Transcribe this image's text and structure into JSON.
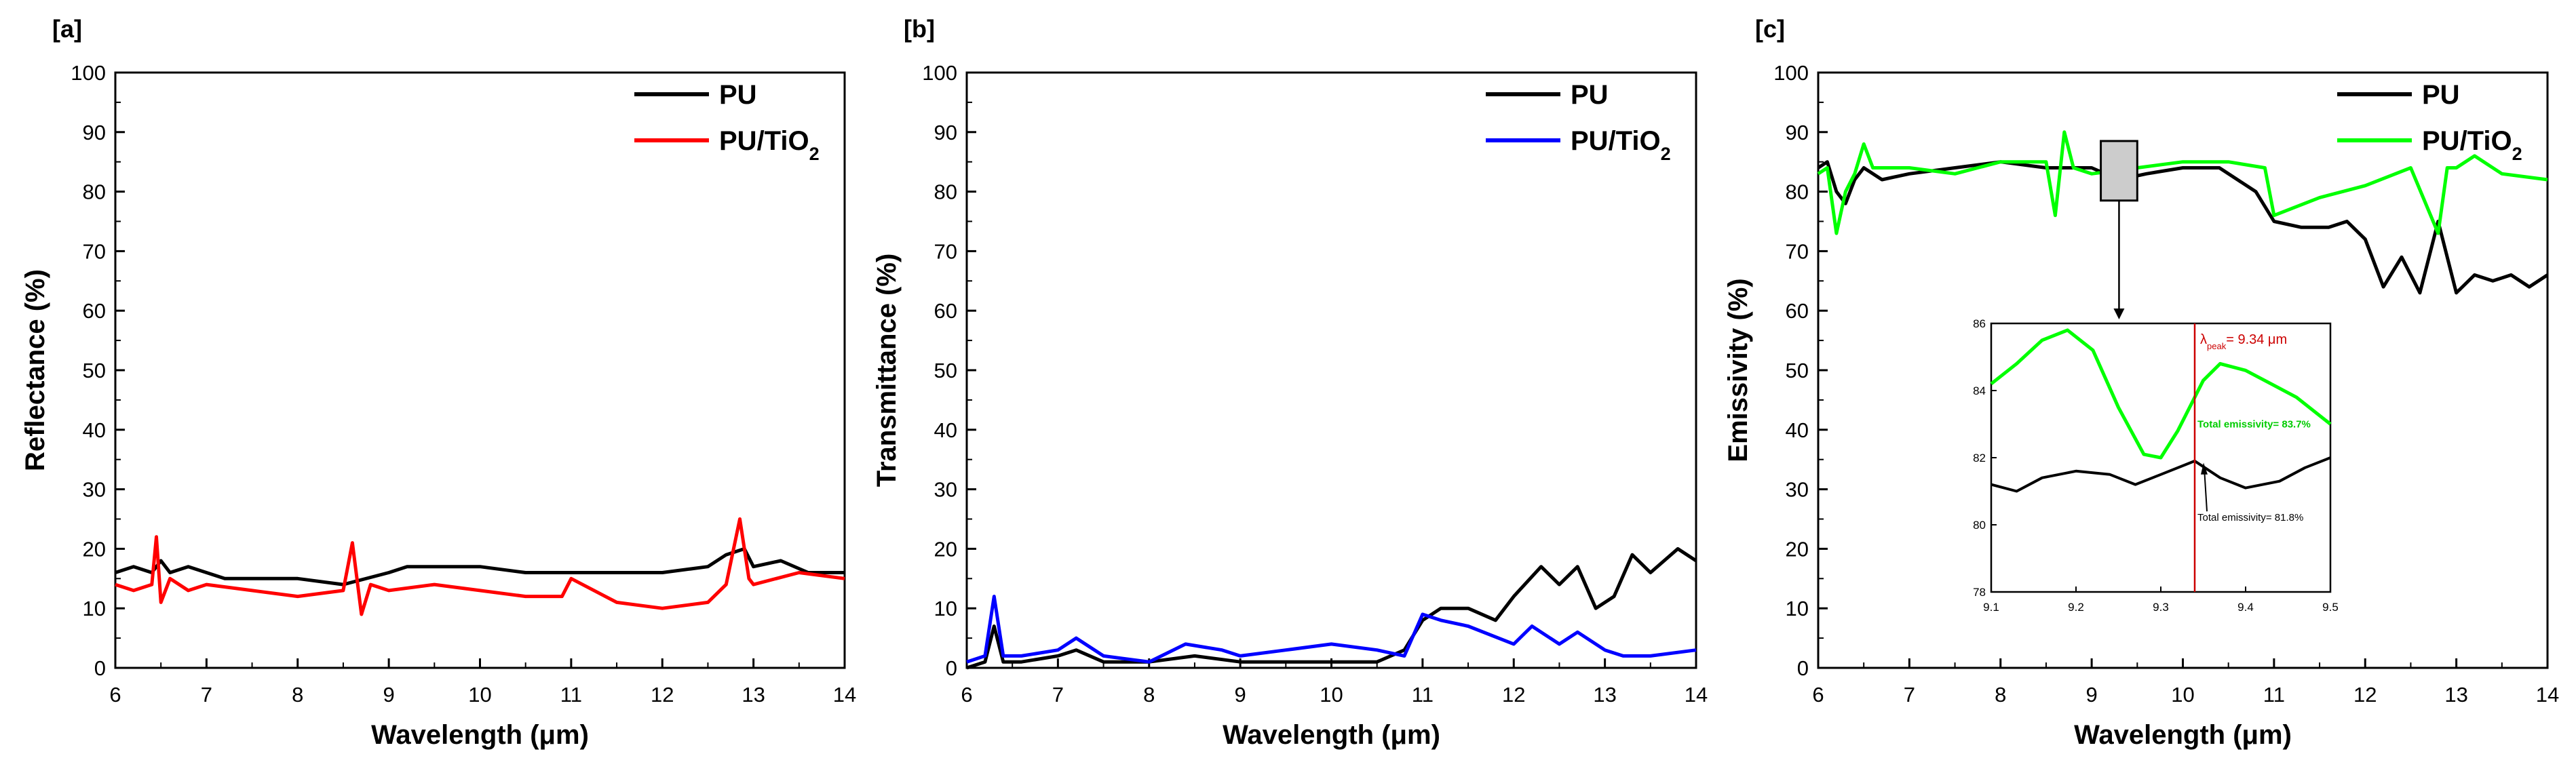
{
  "colors": {
    "pu": "#000000",
    "tio2_a": "#ff0000",
    "tio2_b": "#0000ff",
    "tio2_c": "#00ff00",
    "peak_line": "#cc0000",
    "inset_bg": "#cccccc"
  },
  "chart_data": [
    {
      "type": "line",
      "panel_label": "[a]",
      "xlabel": "Wavelength (μm)",
      "ylabel": "Reflectance (%)",
      "xlim": [
        6,
        14
      ],
      "ylim": [
        0,
        100
      ],
      "x_ticks": [
        "6",
        "7",
        "8",
        "9",
        "10",
        "11",
        "12",
        "13",
        "14"
      ],
      "y_ticks": [
        "0",
        "10",
        "20",
        "30",
        "40",
        "50",
        "60",
        "70",
        "80",
        "90",
        "100"
      ],
      "legend": {
        "placement": "top-right",
        "entries": [
          {
            "name": "PU"
          },
          {
            "name": "PU/TiO",
            "subscript": "2"
          }
        ]
      },
      "series": [
        {
          "name": "PU",
          "color": "#000000",
          "x": [
            6,
            6.2,
            6.4,
            6.5,
            6.6,
            6.8,
            7,
            7.2,
            7.5,
            8,
            8.5,
            9,
            9.2,
            9.5,
            10,
            10.5,
            11,
            11.5,
            12,
            12.5,
            12.7,
            12.9,
            13,
            13.3,
            13.6,
            14
          ],
          "y": [
            16,
            17,
            16,
            18,
            16,
            17,
            16,
            15,
            15,
            15,
            14,
            16,
            17,
            17,
            17,
            16,
            16,
            16,
            16,
            17,
            19,
            20,
            17,
            18,
            16,
            16
          ]
        },
        {
          "name": "PU/TiO2",
          "color": "#ff0000",
          "x": [
            6,
            6.2,
            6.4,
            6.45,
            6.5,
            6.6,
            6.8,
            7,
            7.5,
            8,
            8.5,
            8.6,
            8.7,
            8.8,
            9,
            9.5,
            10,
            10.5,
            10.9,
            11,
            11.5,
            12,
            12.5,
            12.7,
            12.85,
            12.95,
            13,
            13.5,
            14
          ],
          "y": [
            14,
            13,
            14,
            22,
            11,
            15,
            13,
            14,
            13,
            12,
            13,
            21,
            9,
            14,
            13,
            14,
            13,
            12,
            12,
            15,
            11,
            10,
            11,
            14,
            25,
            15,
            14,
            16,
            15
          ]
        }
      ]
    },
    {
      "type": "line",
      "panel_label": "[b]",
      "xlabel": "Wavelength (μm)",
      "ylabel": "Transmittance (%)",
      "xlim": [
        6,
        14
      ],
      "ylim": [
        0,
        100
      ],
      "x_ticks": [
        "6",
        "7",
        "8",
        "9",
        "10",
        "11",
        "12",
        "13",
        "14"
      ],
      "y_ticks": [
        "0",
        "10",
        "20",
        "30",
        "40",
        "50",
        "60",
        "70",
        "80",
        "90",
        "100"
      ],
      "legend": {
        "placement": "top-right",
        "entries": [
          {
            "name": "PU"
          },
          {
            "name": "PU/TiO",
            "subscript": "2"
          }
        ]
      },
      "series": [
        {
          "name": "PU",
          "color": "#000000",
          "x": [
            6,
            6.2,
            6.3,
            6.4,
            6.6,
            7,
            7.2,
            7.5,
            8,
            8.5,
            9,
            9.5,
            10,
            10.5,
            10.8,
            11,
            11.2,
            11.5,
            11.8,
            12,
            12.3,
            12.5,
            12.7,
            12.9,
            13.1,
            13.3,
            13.5,
            13.8,
            14
          ],
          "y": [
            0,
            1,
            7,
            1,
            1,
            2,
            3,
            1,
            1,
            2,
            1,
            1,
            1,
            1,
            3,
            8,
            10,
            10,
            8,
            12,
            17,
            14,
            17,
            10,
            12,
            19,
            16,
            20,
            18
          ]
        },
        {
          "name": "PU/TiO2",
          "color": "#0000ff",
          "x": [
            6,
            6.2,
            6.3,
            6.4,
            6.6,
            7,
            7.2,
            7.5,
            8,
            8.4,
            8.8,
            9,
            9.5,
            10,
            10.5,
            10.8,
            11,
            11.2,
            11.5,
            12,
            12.2,
            12.5,
            12.7,
            13,
            13.2,
            13.5,
            14
          ],
          "y": [
            1,
            2,
            12,
            2,
            2,
            3,
            5,
            2,
            1,
            4,
            3,
            2,
            3,
            4,
            3,
            2,
            9,
            8,
            7,
            4,
            7,
            4,
            6,
            3,
            2,
            2,
            3
          ]
        }
      ]
    },
    {
      "type": "line",
      "panel_label": "[c]",
      "xlabel": "Wavelength (μm)",
      "ylabel": "Emissivity (%)",
      "xlim": [
        6,
        14
      ],
      "ylim": [
        0,
        100
      ],
      "x_ticks": [
        "6",
        "7",
        "8",
        "9",
        "10",
        "11",
        "12",
        "13",
        "14"
      ],
      "y_ticks": [
        "0",
        "10",
        "20",
        "30",
        "40",
        "50",
        "60",
        "70",
        "80",
        "90",
        "100"
      ],
      "legend": {
        "placement": "top-right",
        "entries": [
          {
            "name": "PU"
          },
          {
            "name": "PU/TiO",
            "subscript": "2"
          }
        ]
      },
      "series": [
        {
          "name": "PU",
          "color": "#000000",
          "x": [
            6,
            6.1,
            6.2,
            6.3,
            6.4,
            6.5,
            6.7,
            7,
            7.5,
            8,
            8.5,
            9,
            9.3,
            9.6,
            10,
            10.4,
            10.8,
            11,
            11.3,
            11.6,
            11.8,
            12,
            12.2,
            12.4,
            12.6,
            12.8,
            13,
            13.2,
            13.4,
            13.6,
            13.8,
            14
          ],
          "y": [
            84,
            85,
            80,
            78,
            82,
            84,
            82,
            83,
            84,
            85,
            84,
            84,
            82,
            83,
            84,
            84,
            80,
            75,
            74,
            74,
            75,
            72,
            64,
            69,
            63,
            75,
            63,
            66,
            65,
            66,
            64,
            66
          ]
        },
        {
          "name": "PU/TiO2",
          "color": "#00ff00",
          "x": [
            6,
            6.1,
            6.2,
            6.3,
            6.4,
            6.5,
            6.6,
            7,
            7.5,
            8,
            8.5,
            8.6,
            8.7,
            8.8,
            9,
            9.5,
            10,
            10.5,
            10.9,
            11,
            11.5,
            12,
            12.5,
            12.8,
            12.9,
            13,
            13.2,
            13.5,
            14
          ],
          "y": [
            83,
            84,
            73,
            80,
            83,
            88,
            84,
            84,
            83,
            85,
            85,
            76,
            90,
            84,
            83,
            84,
            85,
            85,
            84,
            76,
            79,
            81,
            84,
            73,
            84,
            84,
            86,
            83,
            82
          ]
        }
      ],
      "inset": {
        "xlim": [
          9.1,
          9.5
        ],
        "ylim": [
          78,
          86
        ],
        "x_ticks": [
          "9.1",
          "9.2",
          "9.3",
          "9.4",
          "9.5"
        ],
        "y_ticks": [
          "78",
          "80",
          "82",
          "84",
          "86"
        ],
        "peak_label": "λ",
        "peak_sub": "peak",
        "peak_value": "= 9.34 μm",
        "peak_x": 9.34,
        "total_tio2": "Total emissivity= 83.7%",
        "total_pu": "Total emissivity= 81.8%",
        "series": [
          {
            "name": "PU",
            "color": "#000000",
            "x": [
              9.1,
              9.13,
              9.16,
              9.2,
              9.24,
              9.27,
              9.3,
              9.34,
              9.37,
              9.4,
              9.44,
              9.47,
              9.5
            ],
            "y": [
              81.2,
              81.0,
              81.4,
              81.6,
              81.5,
              81.2,
              81.5,
              81.9,
              81.4,
              81.1,
              81.3,
              81.7,
              82.0
            ]
          },
          {
            "name": "PU/TiO2",
            "color": "#00ff00",
            "x": [
              9.1,
              9.13,
              9.16,
              9.19,
              9.22,
              9.25,
              9.28,
              9.3,
              9.32,
              9.35,
              9.37,
              9.4,
              9.43,
              9.46,
              9.5
            ],
            "y": [
              84.2,
              84.8,
              85.5,
              85.8,
              85.2,
              83.5,
              82.1,
              82.0,
              82.8,
              84.3,
              84.8,
              84.6,
              84.2,
              83.8,
              83.0
            ]
          }
        ]
      }
    }
  ]
}
